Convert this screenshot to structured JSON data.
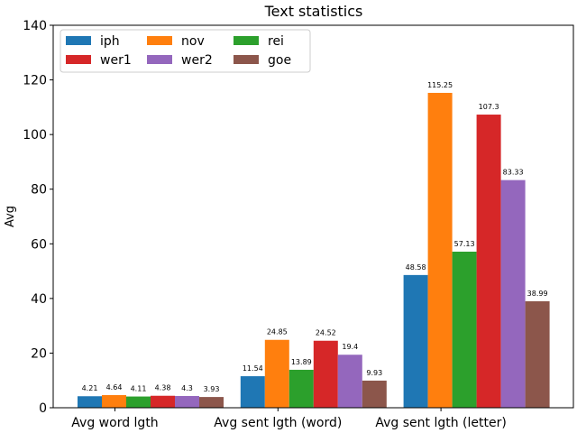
{
  "chart_data": {
    "type": "bar",
    "title": "Text statistics",
    "xlabel": "",
    "ylabel": "Avg",
    "ylim": [
      0,
      140
    ],
    "yticks": [
      0,
      20,
      40,
      60,
      80,
      100,
      120,
      140
    ],
    "categories": [
      "Avg word lgth",
      "Avg sent lgth (word)",
      "Avg sent lgth (letter)"
    ],
    "series": [
      {
        "name": "iph",
        "color": "#1f77b4",
        "values": [
          4.21,
          11.54,
          48.58
        ]
      },
      {
        "name": "nov",
        "color": "#ff7f0e",
        "values": [
          4.64,
          24.85,
          115.25
        ]
      },
      {
        "name": "rei",
        "color": "#2ca02c",
        "values": [
          4.11,
          13.89,
          57.13
        ]
      },
      {
        "name": "wer1",
        "color": "#d62728",
        "values": [
          4.38,
          24.52,
          107.3
        ]
      },
      {
        "name": "wer2",
        "color": "#9467bd",
        "values": [
          4.3,
          19.4,
          83.33
        ]
      },
      {
        "name": "goe",
        "color": "#8c564b",
        "values": [
          3.93,
          9.93,
          38.99
        ]
      }
    ],
    "legend": {
      "placement": "top-left",
      "columns": 3
    },
    "grid": false
  }
}
